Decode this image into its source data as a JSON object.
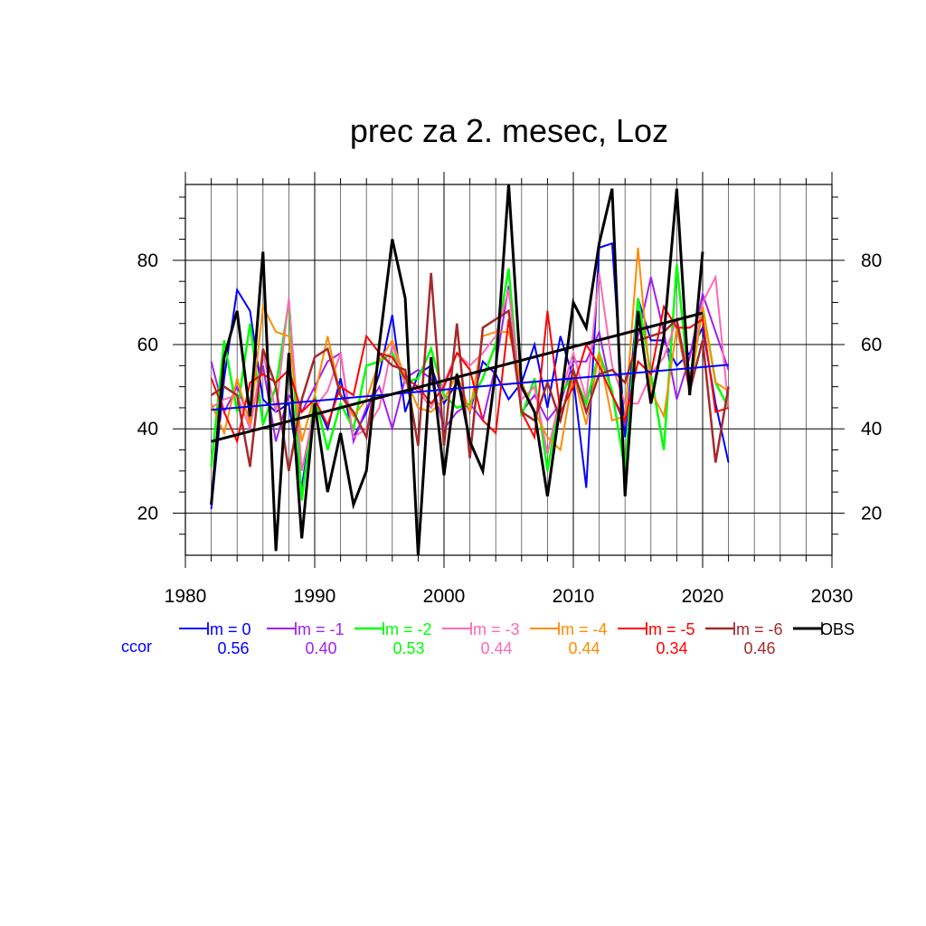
{
  "chart_data": {
    "type": "line",
    "title": "prec za 2. mesec, Loz",
    "xlim": [
      1980,
      2030
    ],
    "ylim": [
      10,
      98
    ],
    "x_ticks": [
      1980,
      1990,
      2000,
      2010,
      2020,
      2030
    ],
    "y_ticks": [
      20,
      40,
      60,
      80
    ],
    "grid": true,
    "x": [
      1982,
      1983,
      1984,
      1985,
      1986,
      1987,
      1988,
      1989,
      1990,
      1991,
      1992,
      1993,
      1994,
      1995,
      1996,
      1997,
      1998,
      1999,
      2000,
      2001,
      2002,
      2003,
      2004,
      2005,
      2006,
      2007,
      2008,
      2009,
      2010,
      2011,
      2012,
      2013,
      2014,
      2015,
      2016,
      2017,
      2018,
      2019,
      2020,
      2021,
      2022
    ],
    "series": [
      {
        "name": "lm = 0",
        "color": "#0000ff",
        "width": 2,
        "ccor": "0.56",
        "values": [
          21,
          52,
          73,
          68,
          47,
          44,
          46,
          26,
          47,
          40,
          52,
          38,
          44,
          53,
          67,
          44,
          53,
          55,
          46,
          51,
          44,
          56,
          53,
          47,
          51,
          60,
          45,
          62,
          52,
          26,
          83,
          84,
          38,
          71,
          61,
          61,
          55,
          58,
          64,
          46,
          32
        ]
      },
      {
        "name": "lm = -1",
        "color": "#a020f0",
        "width": 2,
        "ccor": "0.40",
        "values": [
          56,
          44,
          50,
          42,
          55,
          37,
          48,
          44,
          50,
          56,
          58,
          37,
          45,
          50,
          40,
          52,
          54,
          52,
          40,
          44,
          46,
          42,
          55,
          74,
          44,
          48,
          42,
          46,
          56,
          56,
          63,
          48,
          41,
          62,
          76,
          63,
          47,
          57,
          72,
          63,
          54
        ]
      },
      {
        "name": "lm = -2",
        "color": "#00ff00",
        "width": 2.5,
        "ccor": "0.53",
        "values": [
          31,
          61,
          44,
          65,
          41,
          50,
          70,
          23,
          48,
          35,
          46,
          40,
          55,
          56,
          58,
          51,
          52,
          59,
          48,
          45,
          46,
          52,
          60,
          78,
          43,
          52,
          30,
          48,
          53,
          46,
          58,
          49,
          30,
          71,
          53,
          35,
          79,
          49,
          69,
          51,
          45
        ]
      },
      {
        "name": "lm = -3",
        "color": "#ff69b4",
        "width": 2,
        "ccor": "0.44",
        "values": [
          45,
          47,
          48,
          40,
          58,
          44,
          71,
          30,
          45,
          49,
          58,
          38,
          40,
          45,
          60,
          51,
          49,
          45,
          51,
          58,
          55,
          58,
          62,
          73,
          47,
          50,
          34,
          48,
          58,
          47,
          77,
          55,
          46,
          46,
          53,
          57,
          66,
          52,
          70,
          76,
          45
        ]
      },
      {
        "name": "lm = -4",
        "color": "#ff8c00",
        "width": 2,
        "ccor": "0.44",
        "values": [
          46,
          39,
          52,
          41,
          69,
          63,
          62,
          37,
          48,
          62,
          48,
          43,
          47,
          56,
          61,
          52,
          45,
          44,
          47,
          53,
          44,
          62,
          63,
          63,
          51,
          44,
          38,
          35,
          53,
          41,
          58,
          42,
          43,
          83,
          49,
          43,
          64,
          49,
          69,
          51,
          49
        ]
      },
      {
        "name": "lm = -5",
        "color": "#ff0000",
        "width": 2,
        "ccor": "0.34",
        "values": [
          52,
          44,
          37,
          51,
          53,
          51,
          54,
          44,
          47,
          41,
          50,
          48,
          62,
          58,
          57,
          52,
          50,
          46,
          50,
          58,
          54,
          42,
          39,
          66,
          44,
          38,
          68,
          44,
          50,
          60,
          55,
          48,
          42,
          56,
          53,
          69,
          64,
          64,
          66,
          44,
          45
        ]
      },
      {
        "name": "lm = -6",
        "color": "#a52a2a",
        "width": 2.5,
        "ccor": "0.46",
        "values": [
          48,
          50,
          48,
          31,
          59,
          50,
          30,
          47,
          57,
          59,
          48,
          44,
          38,
          58,
          55,
          54,
          36,
          77,
          36,
          65,
          33,
          64,
          66,
          68,
          44,
          42,
          51,
          42,
          54,
          44,
          53,
          54,
          51,
          61,
          62,
          63,
          66,
          49,
          61,
          32,
          50
        ]
      },
      {
        "name": "OBS",
        "color": "#000000",
        "width": 3,
        "values": [
          22,
          57,
          68,
          43,
          82,
          11,
          58,
          14,
          46,
          25,
          39,
          22,
          30,
          60,
          85,
          71,
          10,
          57,
          29,
          53,
          37,
          30,
          54,
          98,
          50,
          44,
          24,
          46,
          70,
          64,
          84,
          97,
          24,
          68,
          46,
          62,
          97,
          48,
          82,
          null,
          null
        ]
      }
    ],
    "trends": [
      {
        "color": "#0000ff",
        "width": 2,
        "x": [
          1982,
          2022
        ],
        "y": [
          44.5,
          55.2
        ]
      },
      {
        "color": "#000000",
        "width": 3,
        "x": [
          1982,
          2020
        ],
        "y": [
          37,
          67.5
        ]
      }
    ],
    "ccor_label": "ccor",
    "legend_position": "bottom"
  }
}
